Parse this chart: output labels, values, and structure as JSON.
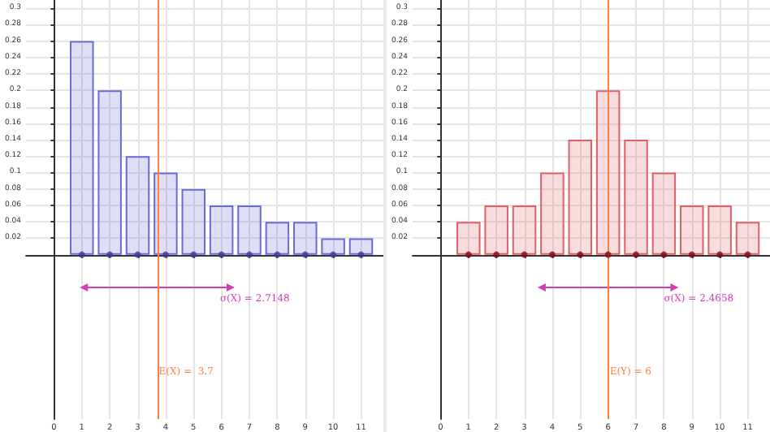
{
  "chart_data": [
    {
      "type": "bar",
      "x": [
        1,
        2,
        3,
        4,
        5,
        6,
        7,
        8,
        9,
        10,
        11
      ],
      "series": [
        {
          "color": "#6b6bd6",
          "values": [
            0.26,
            0.2,
            0.12,
            0.1,
            0.08,
            0.06,
            0.06,
            0.04,
            0.04,
            0.02,
            0.02
          ]
        },
        {
          "type": "scatter",
          "color": "#3c3c8c",
          "marker": "circle",
          "values": [
            0,
            0,
            0,
            0,
            0,
            0,
            0,
            0,
            0,
            0,
            0
          ]
        },
        {
          "type": "line",
          "color": "#d23fb4",
          "x": [
            0.985,
            6.415
          ],
          "values": [
            -0.04,
            -0.04
          ]
        }
      ],
      "xlim": [
        -1,
        11.8
      ],
      "ylim": [
        -0.2,
        0.31
      ],
      "xticks": [
        0,
        1,
        2,
        3,
        4,
        5,
        6,
        7,
        8,
        9,
        10,
        11
      ],
      "yticks": [
        0.02,
        0.04,
        0.06,
        0.08,
        0.1,
        0.12,
        0.14,
        0.16,
        0.18,
        0.2,
        0.22,
        0.24,
        0.26,
        0.28,
        0.3
      ],
      "grid": true,
      "ref_lines": [
        {
          "axis": "x",
          "value": 3.7,
          "label": "E(X) =  3.7",
          "color": "#ff7f3f"
        }
      ],
      "annotations": [
        {
          "text": "σ(X) = 2.7148",
          "x": 6.415,
          "y": -0.04
        }
      ]
    },
    {
      "type": "bar",
      "x": [
        1,
        2,
        3,
        4,
        5,
        6,
        7,
        8,
        9,
        10,
        11
      ],
      "series": [
        {
          "color": "#e0606a",
          "values": [
            0.04,
            0.06,
            0.06,
            0.1,
            0.14,
            0.2,
            0.14,
            0.1,
            0.06,
            0.06,
            0.04
          ]
        },
        {
          "type": "scatter",
          "color": "#7a0a14",
          "marker": "circle",
          "values": [
            0,
            0,
            0,
            0,
            0,
            0,
            0,
            0,
            0,
            0,
            0
          ]
        },
        {
          "type": "line",
          "color": "#d23fb4",
          "x": [
            3.5342,
            8.4658
          ],
          "values": [
            -0.04,
            -0.04
          ]
        }
      ],
      "xlim": [
        -1,
        11.8
      ],
      "ylim": [
        -0.2,
        0.31
      ],
      "xticks": [
        0,
        1,
        2,
        3,
        4,
        5,
        6,
        7,
        8,
        9,
        10,
        11
      ],
      "yticks": [
        0.02,
        0.04,
        0.06,
        0.08,
        0.1,
        0.12,
        0.14,
        0.16,
        0.18,
        0.2,
        0.22,
        0.24,
        0.26,
        0.28,
        0.3
      ],
      "grid": true,
      "ref_lines": [
        {
          "axis": "x",
          "value": 6,
          "label": "E(Y) = 6",
          "color": "#ff7f3f"
        }
      ],
      "annotations": [
        {
          "text": "σ(X) = 2.4658",
          "x": 8.4658,
          "y": -0.04
        }
      ]
    }
  ]
}
